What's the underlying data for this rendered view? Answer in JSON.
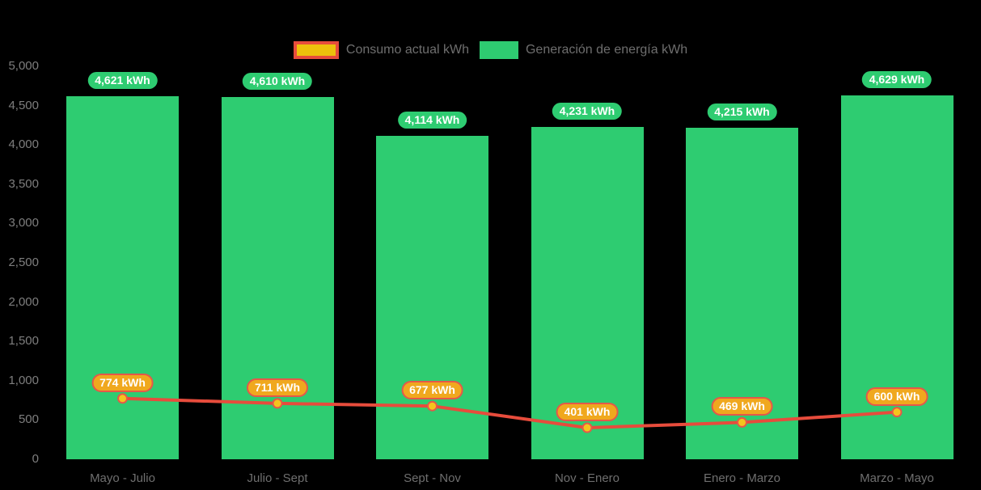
{
  "legend": {
    "items": [
      {
        "label": "Consumo actual kWh",
        "swatch_fill": "#EDC00C",
        "swatch_border": "#E74C3C"
      },
      {
        "label": "Generación de energía kWh",
        "swatch_fill": "#2ECC71"
      }
    ]
  },
  "chart_data": {
    "type": "bar",
    "title": "",
    "xlabel": "",
    "ylabel": "",
    "categories": [
      "Mayo - Julio",
      "Julio - Sept",
      "Sept - Nov",
      "Nov - Enero",
      "Enero - Marzo",
      "Marzo - Mayo"
    ],
    "series": [
      {
        "name": "Generación de energía kWh",
        "type": "bar",
        "color": "#2ECC71",
        "values": [
          4621,
          4610,
          4114,
          4231,
          4215,
          4629
        ],
        "data_labels": [
          "4,621 kWh",
          "4,610 kWh",
          "4,114 kWh",
          "4,231 kWh",
          "4,215 kWh",
          "4,629 kWh"
        ]
      },
      {
        "name": "Consumo actual kWh",
        "type": "line",
        "color": "#E74C3C",
        "point_fill": "#F5C41D",
        "point_border": "#E4584A",
        "values": [
          774,
          711,
          677,
          401,
          469,
          600
        ],
        "data_labels": [
          "774 kWh",
          "711 kWh",
          "677 kWh",
          "401 kWh",
          "469 kWh",
          "600 kWh"
        ]
      }
    ],
    "ylim": [
      0,
      5000
    ],
    "ytick_step": 500,
    "ytick_labels": [
      "0",
      "500",
      "1,000",
      "1,500",
      "2,000",
      "2,500",
      "3,000",
      "3,500",
      "4,000",
      "4,500",
      "5,000"
    ],
    "grid": false,
    "legend_position": "top",
    "background": "#000000"
  },
  "colors": {
    "bar_label_bg": "#2ECC71",
    "point_label_bg": "#F0A81E",
    "point_label_border": "#E4584A",
    "label_text": "#FFFFFF",
    "axis_text": "#7E7E7E",
    "legend_text": "#6E6E6E"
  }
}
